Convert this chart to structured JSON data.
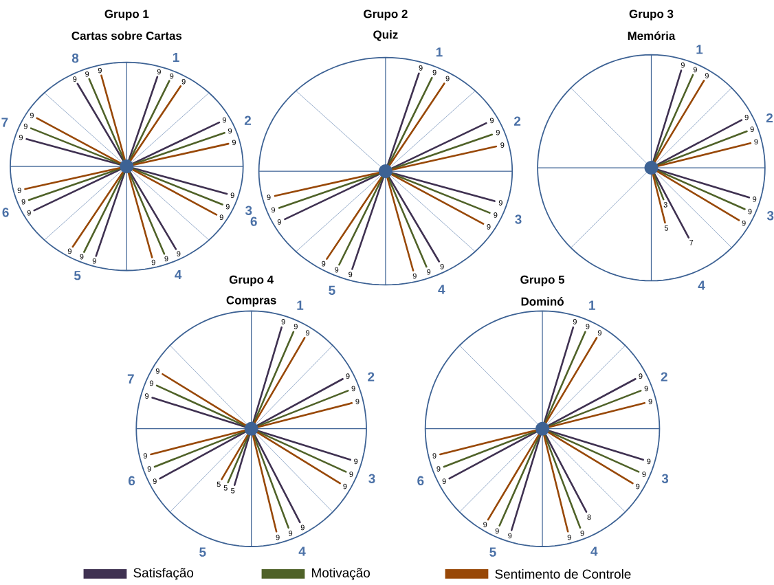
{
  "chart_data": [
    {
      "type": "other",
      "title": "Grupo 1",
      "subtitle": "Cartas sobre Cartas",
      "categories": [
        "1",
        "2",
        "3",
        "4",
        "5",
        "6",
        "7",
        "8"
      ],
      "data_labels": true,
      "legend": "bottom",
      "series": [
        {
          "name": "Satisfação",
          "color": "#3f3151",
          "values": [
            9,
            9,
            9,
            9,
            9,
            9,
            9,
            9
          ]
        },
        {
          "name": "Motivação",
          "color": "#4f6228",
          "values": [
            9,
            9,
            9,
            9,
            9,
            9,
            9,
            9
          ]
        },
        {
          "name": "Sentimento de Controle",
          "color": "#984807",
          "values": [
            9,
            9,
            9,
            9,
            9,
            9,
            9,
            9
          ]
        }
      ]
    },
    {
      "type": "other",
      "title": "Grupo 2",
      "subtitle": "Quiz",
      "categories": [
        "1",
        "2",
        "3",
        "4",
        "5",
        "6"
      ],
      "data_labels": true,
      "series": [
        {
          "color": "#3f3151",
          "values": [
            9,
            9,
            9,
            9,
            9,
            9
          ]
        },
        {
          "color": "#4f6228",
          "values": [
            9,
            9,
            9,
            9,
            9,
            9
          ]
        },
        {
          "color": "#984807",
          "values": [
            9,
            9,
            9,
            9,
            9,
            9
          ]
        }
      ]
    },
    {
      "type": "other",
      "title": "Grupo 3",
      "subtitle": "Memória",
      "categories": [
        "1",
        "2",
        "3",
        "4"
      ],
      "data_labels": true,
      "series": [
        {
          "color": "#3f3151",
          "values": [
            9,
            9,
            9,
            7
          ]
        },
        {
          "color": "#4f6228",
          "values": [
            9,
            9,
            9,
            3
          ]
        },
        {
          "color": "#984807",
          "values": [
            9,
            9,
            9,
            5
          ]
        }
      ]
    },
    {
      "type": "other",
      "title": "Grupo 4",
      "subtitle": "Compras",
      "categories": [
        "1",
        "2",
        "3",
        "4",
        "5",
        "6",
        "7"
      ],
      "data_labels": true,
      "series": [
        {
          "color": "#3f3151",
          "values": [
            9,
            9,
            9,
            9,
            5,
            9,
            9
          ]
        },
        {
          "color": "#4f6228",
          "values": [
            9,
            9,
            9,
            9,
            5,
            9,
            9
          ]
        },
        {
          "color": "#984807",
          "values": [
            9,
            9,
            9,
            9,
            5,
            9,
            9
          ]
        }
      ]
    },
    {
      "type": "other",
      "title": "Grupo 5",
      "subtitle": "Dominó",
      "categories": [
        "1",
        "2",
        "3",
        "4",
        "5",
        "6"
      ],
      "data_labels": true,
      "series": [
        {
          "color": "#3f3151",
          "values": [
            9,
            9,
            9,
            8,
            9,
            9
          ]
        },
        {
          "color": "#4f6228",
          "values": [
            9,
            9,
            9,
            9,
            9,
            9
          ]
        },
        {
          "color": "#984807",
          "values": [
            9,
            9,
            9,
            9,
            9,
            9
          ]
        }
      ]
    }
  ]
}
